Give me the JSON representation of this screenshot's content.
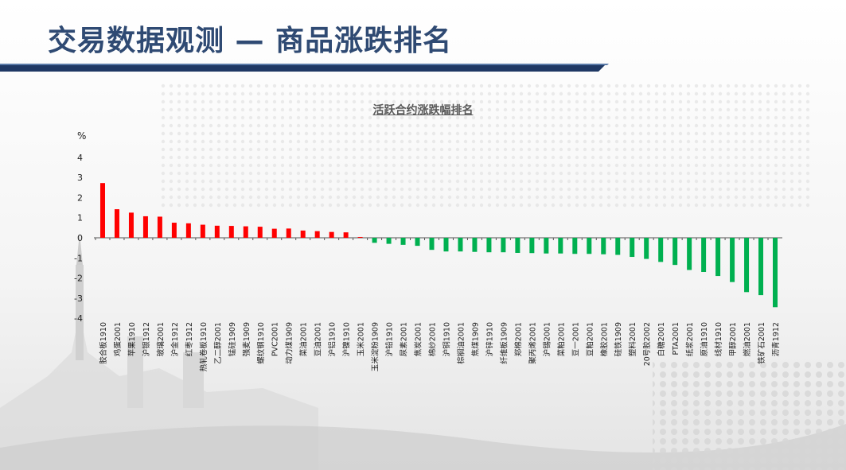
{
  "header": {
    "title": "交易数据观测 — 商品涨跌排名"
  },
  "colors": {
    "title": "#2f4a73",
    "bar_positive": "#ff0000",
    "bar_negative": "#00b050",
    "header_bar_dark": "#1f3864"
  },
  "chart_data": {
    "type": "bar",
    "title": "活跃合约涨跌幅排名",
    "ylabel": "%",
    "xlabel": "",
    "ylim": [
      -4,
      4
    ],
    "yticks": [
      4,
      3,
      2,
      1,
      0,
      -1,
      -2,
      -3,
      -4
    ],
    "grid": false,
    "legend": "none",
    "categories": [
      "胶合板1910",
      "鸡蛋2001",
      "苹果1910",
      "沪银1912",
      "玻璃2001",
      "沪金1912",
      "红枣1912",
      "热轧卷板1910",
      "乙二醇2001",
      "锰硅1909",
      "强麦1909",
      "螺纹钢1910",
      "PVC2001",
      "动力煤1909",
      "菜油2001",
      "豆油2001",
      "沪铝1910",
      "沪镍1910",
      "玉米2001",
      "玉米淀粉1909",
      "沪铅1910",
      "尿素2001",
      "焦炭2001",
      "棉纱2001",
      "沪铜1910",
      "棕榈油2001",
      "焦煤1909",
      "沪锌1910",
      "纤维板1909",
      "郑棉2001",
      "聚丙烯2001",
      "沪锡2001",
      "菜粕2001",
      "豆一2001",
      "豆粕2001",
      "橡胶2001",
      "硅铁1909",
      "塑料2001",
      "20号胶2002",
      "白糖2001",
      "PTA2001",
      "纸浆2001",
      "原油1910",
      "线材1910",
      "甲醇2001",
      "燃油2001",
      "铁矿石2001",
      "沥青1912"
    ],
    "values": [
      2.72,
      1.42,
      1.25,
      1.07,
      1.05,
      0.75,
      0.72,
      0.65,
      0.6,
      0.59,
      0.57,
      0.55,
      0.45,
      0.46,
      0.36,
      0.33,
      0.29,
      0.27,
      0.04,
      -0.25,
      -0.3,
      -0.35,
      -0.4,
      -0.6,
      -0.68,
      -0.68,
      -0.7,
      -0.72,
      -0.72,
      -0.75,
      -0.76,
      -0.78,
      -0.78,
      -0.8,
      -0.8,
      -0.82,
      -0.85,
      -0.95,
      -1.05,
      -1.2,
      -1.35,
      -1.6,
      -1.7,
      -1.9,
      -2.2,
      -2.7,
      -2.85,
      -3.45
    ]
  }
}
